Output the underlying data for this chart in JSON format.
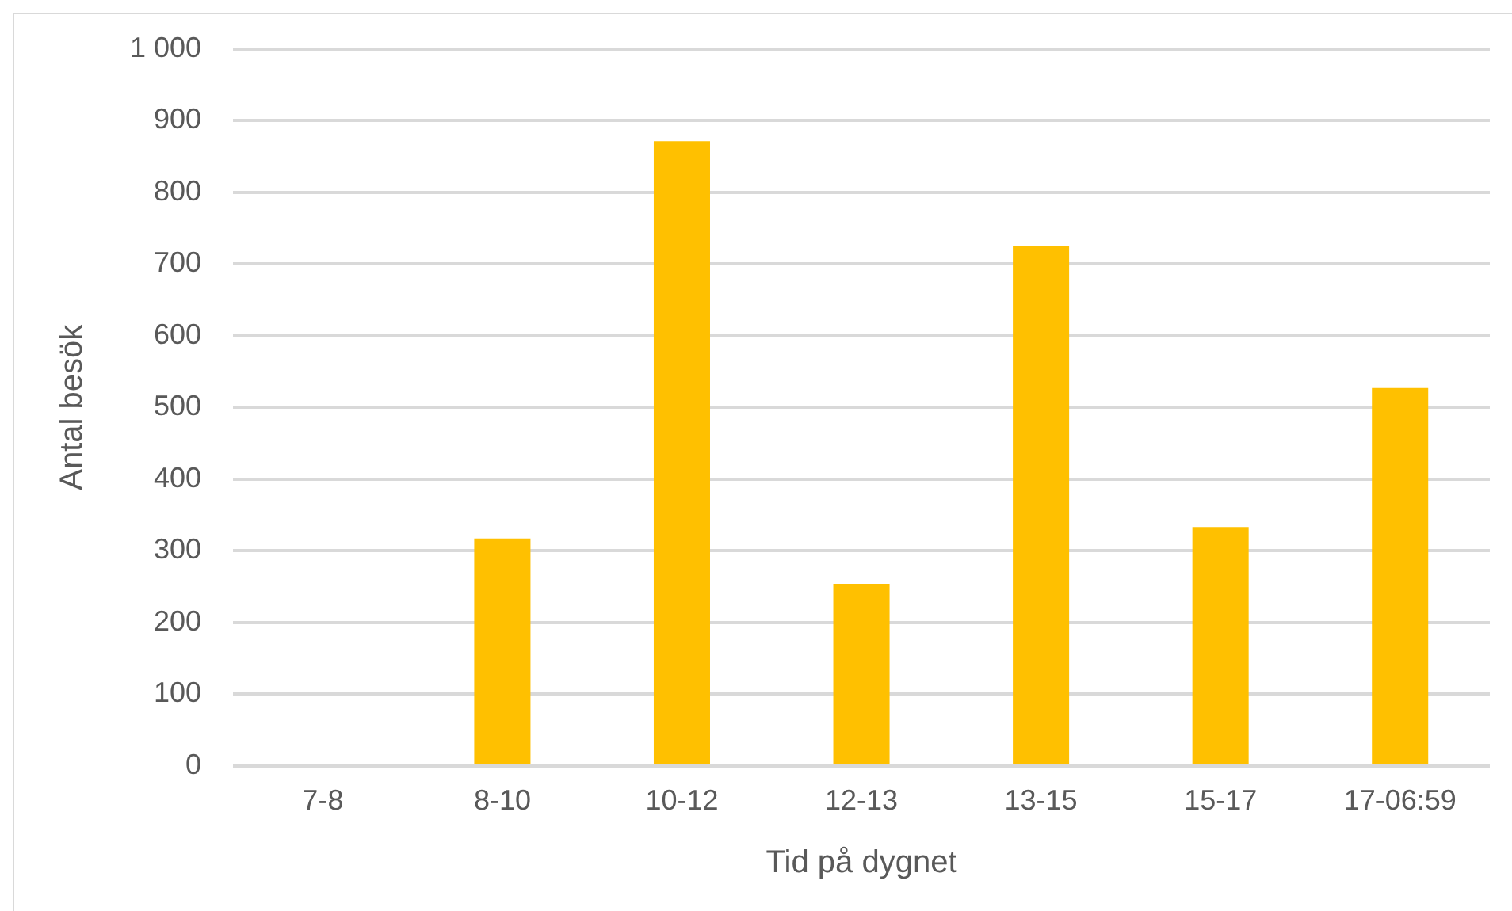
{
  "chart_data": {
    "type": "bar",
    "xlabel": "Tid på dygnet",
    "ylabel": "Antal besök",
    "categories": [
      "7-8",
      "8-10",
      "10-12",
      "12-13",
      "13-15",
      "15-17",
      "17-06:59"
    ],
    "values": [
      3,
      317,
      871,
      254,
      725,
      333,
      527
    ],
    "color": "#ffc000",
    "ylim": [
      0,
      1000
    ],
    "yticks": [
      0,
      100,
      200,
      300,
      400,
      500,
      600,
      700,
      800,
      900,
      {
        "value": 1000,
        "label": "1 000"
      }
    ],
    "grid": "y",
    "legend": false
  }
}
